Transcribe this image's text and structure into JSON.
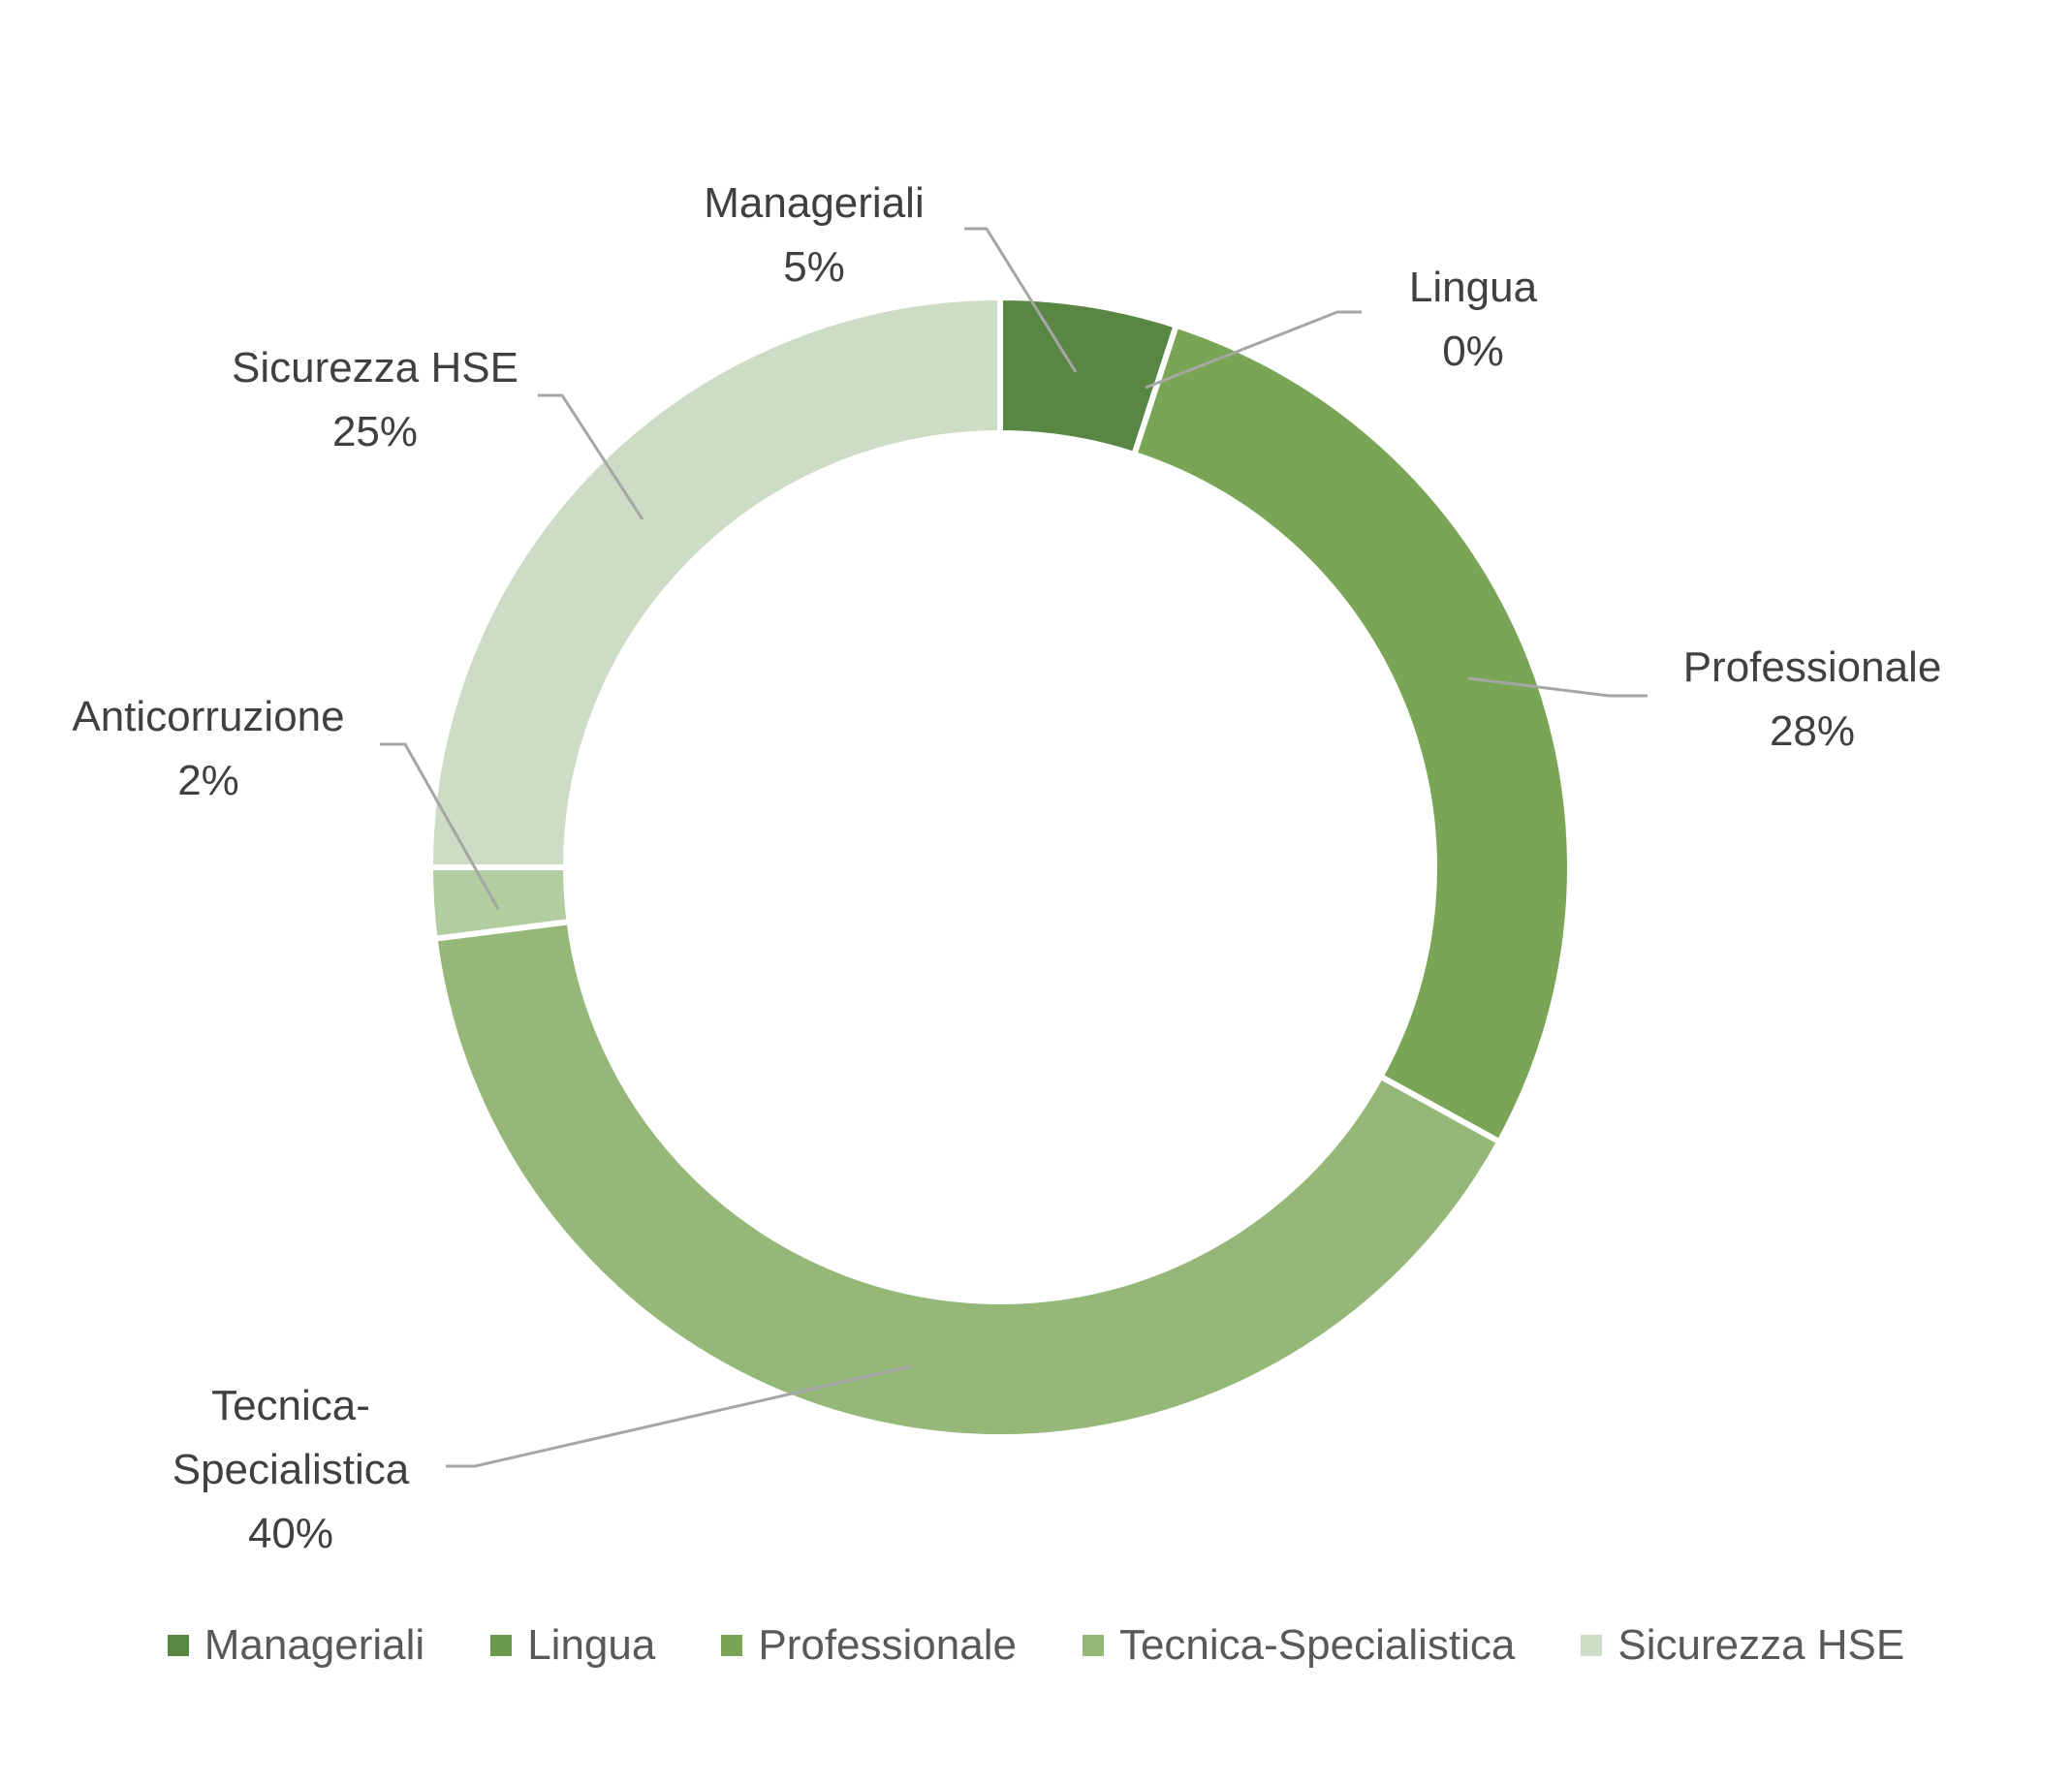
{
  "chart_data": {
    "type": "donut",
    "title": "",
    "slices": [
      {
        "label": "Manageriali",
        "value": 5,
        "value_label": "5%",
        "color": "#5a8644"
      },
      {
        "label": "Lingua",
        "value": 0,
        "value_label": "0%",
        "color": "#6b9a4f"
      },
      {
        "label": "Professionale",
        "value": 28,
        "value_label": "28%",
        "color": "#7aa556"
      },
      {
        "label": "Tecnica-Specialistica",
        "value": 40,
        "value_label": "40%",
        "color": "#95b879"
      },
      {
        "label": "Anticorruzione",
        "value": 2,
        "value_label": "2%",
        "color": "#b2cda0"
      },
      {
        "label": "Sicurezza HSE",
        "value": 25,
        "value_label": "25%",
        "color": "#cddcc4"
      }
    ],
    "data_label_lines": {
      "Manageriali": [
        "Manageriali",
        "5%"
      ],
      "Lingua": [
        "Lingua",
        "0%"
      ],
      "Professionale": [
        "Professionale",
        "28%"
      ],
      "Tecnica-Specialistica": [
        "Tecnica-",
        "Specialistica",
        "40%"
      ],
      "Anticorruzione": [
        "Anticorruzione",
        "2%"
      ],
      "Sicurezza HSE": [
        "Sicurezza HSE",
        "25%"
      ]
    },
    "legend": {
      "position": "bottom",
      "entries": [
        {
          "label": "Manageriali",
          "color": "#5a8644"
        },
        {
          "label": "Lingua",
          "color": "#6b9a4f"
        },
        {
          "label": "Professionale",
          "color": "#7aa556"
        },
        {
          "label": "Tecnica-Specialistica",
          "color": "#95b879"
        },
        {
          "label": "Sicurezza HSE",
          "color": "#cddcc4"
        }
      ]
    }
  }
}
